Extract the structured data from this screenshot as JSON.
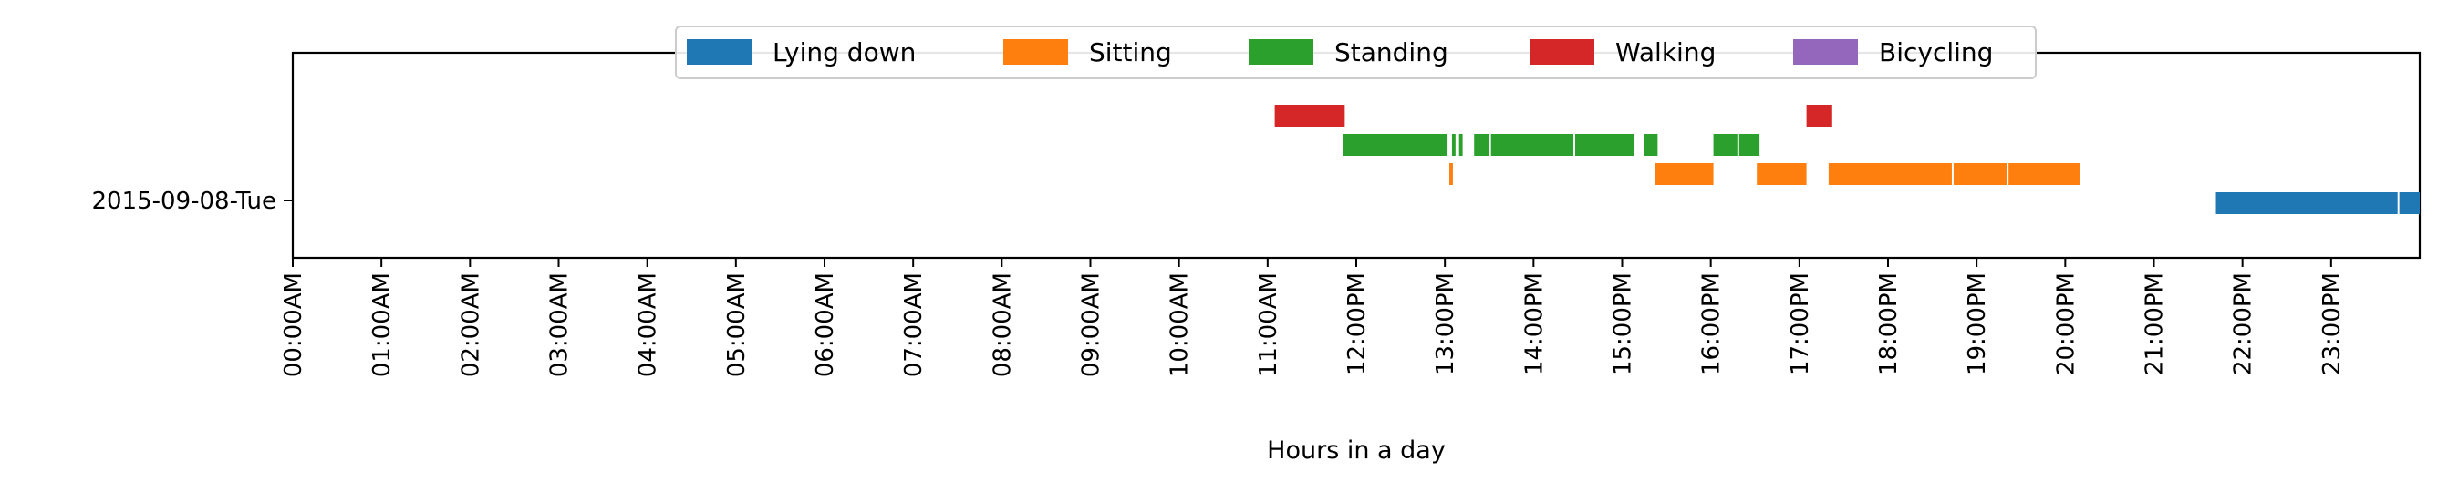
{
  "chart_data": {
    "type": "bar",
    "orientation": "horizontal-timeline",
    "xlabel": "Hours in a day",
    "ylabel": "",
    "xlim": [
      0,
      24
    ],
    "y_categories": [
      "2015-09-08-Tue"
    ],
    "x_ticks": [
      {
        "value": 0,
        "label": "00:00AM"
      },
      {
        "value": 1,
        "label": "01:00AM"
      },
      {
        "value": 2,
        "label": "02:00AM"
      },
      {
        "value": 3,
        "label": "03:00AM"
      },
      {
        "value": 4,
        "label": "04:00AM"
      },
      {
        "value": 5,
        "label": "05:00AM"
      },
      {
        "value": 6,
        "label": "06:00AM"
      },
      {
        "value": 7,
        "label": "07:00AM"
      },
      {
        "value": 8,
        "label": "08:00AM"
      },
      {
        "value": 9,
        "label": "09:00AM"
      },
      {
        "value": 10,
        "label": "10:00AM"
      },
      {
        "value": 11,
        "label": "11:00AM"
      },
      {
        "value": 12,
        "label": "12:00PM"
      },
      {
        "value": 13,
        "label": "13:00PM"
      },
      {
        "value": 14,
        "label": "14:00PM"
      },
      {
        "value": 15,
        "label": "15:00PM"
      },
      {
        "value": 16,
        "label": "16:00PM"
      },
      {
        "value": 17,
        "label": "17:00PM"
      },
      {
        "value": 18,
        "label": "18:00PM"
      },
      {
        "value": 19,
        "label": "19:00PM"
      },
      {
        "value": 20,
        "label": "20:00PM"
      },
      {
        "value": 21,
        "label": "21:00PM"
      },
      {
        "value": 22,
        "label": "22:00PM"
      },
      {
        "value": 23,
        "label": "23:00PM"
      }
    ],
    "legend_position": "top-center",
    "grid": false,
    "series": [
      {
        "name": "Lying down",
        "color": "#1f77b4",
        "lane": 0,
        "intervals": [
          [
            21.7,
            23.75
          ],
          [
            23.77,
            24.0
          ]
        ]
      },
      {
        "name": "Sitting",
        "color": "#ff7f0e",
        "lane": 1,
        "intervals": [
          [
            13.05,
            13.09
          ],
          [
            15.37,
            16.03
          ],
          [
            16.52,
            17.08
          ],
          [
            17.33,
            18.72
          ],
          [
            18.74,
            19.34
          ],
          [
            19.36,
            20.17
          ]
        ]
      },
      {
        "name": "Standing",
        "color": "#2ca02c",
        "lane": 2,
        "intervals": [
          [
            11.85,
            13.03
          ],
          [
            13.08,
            13.12
          ],
          [
            13.16,
            13.2
          ],
          [
            13.33,
            13.5
          ],
          [
            13.52,
            14.45
          ],
          [
            14.47,
            15.13
          ],
          [
            15.25,
            15.4
          ],
          [
            16.03,
            16.3
          ],
          [
            16.32,
            16.55
          ]
        ]
      },
      {
        "name": "Walking",
        "color": "#d62728",
        "lane": 3,
        "intervals": [
          [
            11.08,
            11.87
          ],
          [
            17.08,
            17.37
          ]
        ]
      },
      {
        "name": "Bicycling",
        "color": "#9467bd",
        "lane": 4,
        "intervals": []
      }
    ]
  }
}
